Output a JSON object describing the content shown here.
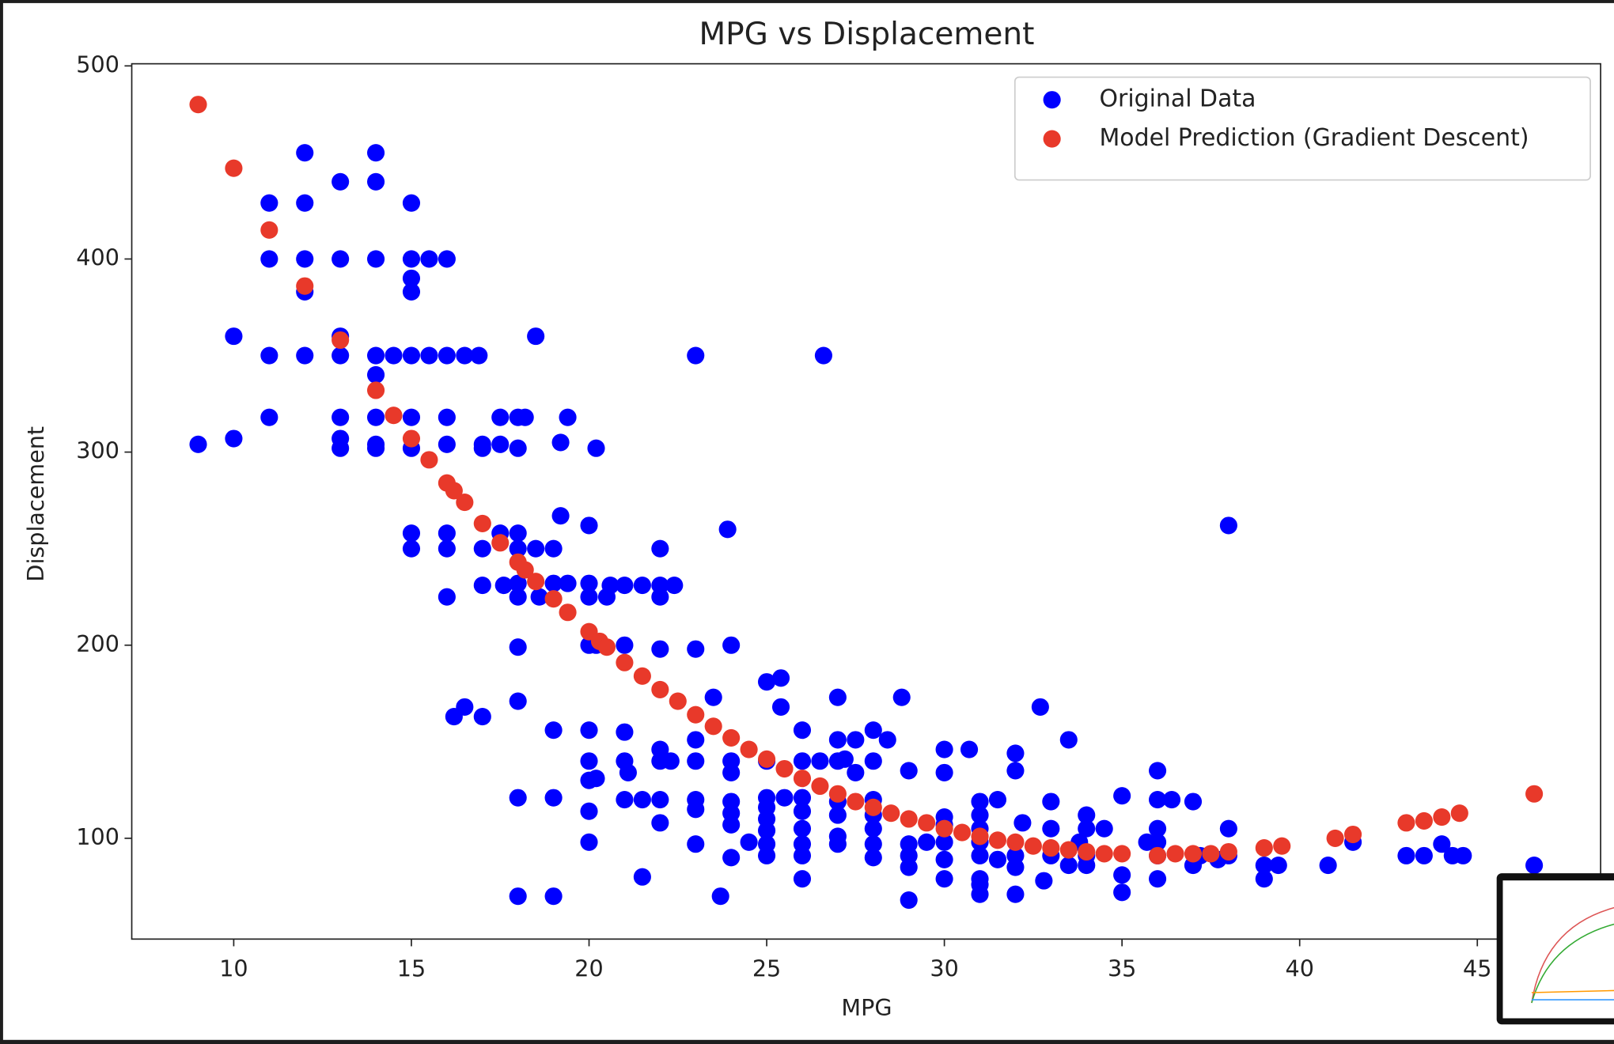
{
  "chart_data": {
    "type": "scatter",
    "title": "MPG vs Displacement",
    "x_label": "MPG",
    "y_label": "Displacement",
    "xlim": [
      7.13,
      48.47
    ],
    "ylim": [
      47.8,
      501.1
    ],
    "xticks": [
      10,
      15,
      20,
      25,
      30,
      35,
      40,
      45
    ],
    "yticks": [
      100,
      200,
      300,
      400,
      500
    ],
    "legend": "upper right",
    "series": [
      {
        "name": "Original Data",
        "color": "#0000ff",
        "x": [
          9,
          10,
          10,
          11,
          11,
          11,
          11,
          12,
          12,
          12,
          12,
          12,
          13,
          13,
          13,
          13,
          13,
          13,
          13,
          14,
          14,
          14,
          14,
          14,
          14,
          14,
          14,
          14.5,
          15,
          15,
          15,
          15,
          15,
          15,
          15,
          15,
          15,
          15.5,
          15.5,
          16,
          16,
          16,
          16,
          16,
          16,
          16,
          16.2,
          16.5,
          16.5,
          16.9,
          17,
          17,
          17,
          17,
          17,
          17.5,
          17.5,
          17.5,
          17.6,
          18,
          18,
          18,
          18,
          18,
          18,
          18,
          18,
          18,
          18,
          18.2,
          18.5,
          18.5,
          18.6,
          19,
          19,
          19,
          19,
          19,
          19.2,
          19.2,
          19.4,
          19.4,
          20,
          20,
          20,
          20,
          20,
          20,
          20,
          20,
          20,
          20.2,
          20.2,
          20.2,
          20.5,
          20.6,
          21,
          21,
          21,
          21,
          21,
          21.1,
          21.5,
          21.5,
          21.5,
          22,
          22,
          22,
          22,
          22,
          22,
          22,
          22,
          22.4,
          22.3,
          23,
          23,
          23,
          23,
          23,
          23,
          23,
          23.5,
          23.7,
          23.9,
          24,
          24,
          24,
          24,
          24,
          24,
          24,
          24.5,
          25,
          25,
          25,
          25,
          25,
          25,
          25,
          25,
          25.4,
          25.4,
          25.5,
          26,
          26,
          26,
          26,
          26,
          26,
          26,
          26,
          26.5,
          26.6,
          27,
          27,
          27,
          27,
          27,
          27,
          27,
          27.2,
          27.5,
          27.5,
          28,
          28,
          28,
          28,
          28,
          28,
          28,
          28.4,
          28.8,
          29,
          29,
          29,
          29,
          29,
          29.5,
          30,
          30,
          30,
          30,
          30,
          30,
          30,
          30.7,
          31,
          31,
          31,
          31,
          31,
          31,
          31,
          31,
          31.5,
          31.5,
          32,
          32,
          32,
          32,
          32,
          32.2,
          32.7,
          32.8,
          33,
          33,
          33,
          33.5,
          33.5,
          33.8,
          34,
          34,
          34,
          34,
          34.5,
          35,
          35,
          35,
          35.7,
          36,
          36,
          36,
          36,
          36,
          36,
          36.4,
          37,
          37,
          37.2,
          37.7,
          38,
          38,
          38,
          39,
          39,
          39.4,
          40.8,
          41.5,
          43,
          43.5,
          44,
          44.3,
          44.6,
          46.6
        ],
        "values": [
          304,
          307,
          360,
          318,
          350,
          400,
          429,
          350,
          383,
          400,
          429,
          455,
          302,
          307,
          318,
          350,
          360,
          400,
          440,
          302,
          304,
          318,
          340,
          350,
          400,
          440,
          455,
          350,
          250,
          258,
          302,
          318,
          350,
          383,
          390,
          400,
          429,
          350,
          400,
          225,
          250,
          258,
          304,
          318,
          350,
          400,
          163,
          168,
          350,
          350,
          163,
          231,
          250,
          302,
          304,
          304,
          318,
          258,
          231,
          70,
          121,
          171,
          199,
          225,
          232,
          250,
          258,
          302,
          318,
          318,
          250,
          360,
          225,
          70,
          121,
          156,
          232,
          250,
          267,
          305,
          318,
          232,
          98,
          114,
          130,
          140,
          156,
          200,
          225,
          232,
          262,
          302,
          131,
          200,
          225,
          231,
          120,
          140,
          155,
          200,
          231,
          134,
          80,
          120,
          231,
          108,
          120,
          140,
          146,
          198,
          225,
          231,
          250,
          231,
          140,
          97,
          115,
          120,
          140,
          151,
          198,
          350,
          173,
          70,
          260,
          90,
          107,
          113,
          119,
          140,
          134,
          200,
          98,
          91,
          97,
          104,
          110,
          116,
          121,
          140,
          181,
          183,
          168,
          121,
          79,
          91,
          97,
          105,
          114,
          121,
          140,
          156,
          140,
          350,
          97,
          101,
          112,
          119,
          140,
          151,
          173,
          141,
          151,
          134,
          90,
          97,
          105,
          112,
          120,
          140,
          156,
          151,
          173,
          68,
          85,
          91,
          97,
          135,
          98,
          79,
          89,
          98,
          107,
          111,
          134,
          146,
          146,
          71,
          76,
          79,
          91,
          98,
          105,
          112,
          119,
          89,
          120,
          71,
          85,
          91,
          135,
          144,
          108,
          168,
          78,
          91,
          105,
          119,
          86,
          151,
          98,
          86,
          91,
          105,
          112,
          105,
          72,
          81,
          122,
          98,
          79,
          91,
          98,
          105,
          120,
          135,
          120,
          86,
          119,
          91,
          89,
          91,
          105,
          262,
          79,
          86,
          86,
          86,
          98,
          91,
          91,
          97,
          91,
          91,
          86
        ]
      },
      {
        "name": "Model Prediction (Gradient Descent)",
        "color": "#e8392a",
        "x": [
          9,
          10,
          11,
          12,
          13,
          14,
          14.5,
          15,
          15.5,
          16,
          16.2,
          16.5,
          17,
          17.5,
          18,
          18.2,
          18.5,
          19,
          19.4,
          20,
          20.3,
          20.5,
          21,
          21.5,
          22,
          22.5,
          23,
          23.5,
          24,
          24.5,
          25,
          25.5,
          26,
          26.5,
          27,
          27.5,
          28,
          28.5,
          29,
          29.5,
          30,
          30.5,
          31,
          31.5,
          32,
          32.5,
          33,
          33.5,
          34,
          34.5,
          35,
          36,
          36.5,
          37,
          37.5,
          38,
          39,
          39.5,
          41,
          41.5,
          43,
          43.5,
          44,
          44.5,
          46.6
        ],
        "values": [
          480,
          447,
          415,
          386,
          358,
          332,
          319,
          307,
          296,
          284,
          280,
          274,
          263,
          253,
          243,
          239,
          233,
          224,
          217,
          207,
          202,
          199,
          191,
          184,
          177,
          171,
          164,
          158,
          152,
          146,
          141,
          136,
          131,
          127,
          123,
          119,
          116,
          113,
          110,
          108,
          105,
          103,
          101,
          99,
          98,
          96,
          95,
          94,
          93,
          92,
          92,
          91,
          92,
          92,
          92,
          93,
          95,
          96,
          100,
          102,
          108,
          109,
          111,
          113,
          123
        ]
      }
    ]
  }
}
